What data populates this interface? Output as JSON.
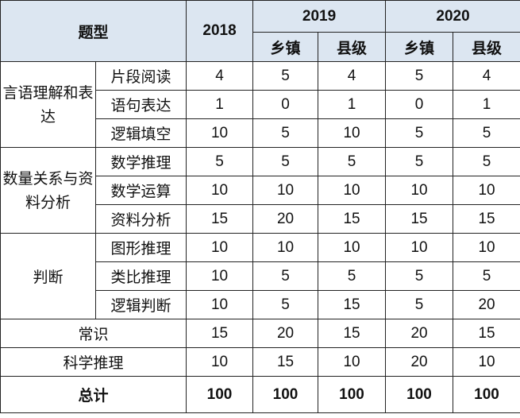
{
  "header": {
    "title": "题型",
    "year_2018": "2018",
    "year_2019": "2019",
    "year_2020": "2020",
    "sub_2019": [
      "乡镇",
      "县级"
    ],
    "sub_2020": [
      "乡镇",
      "县级"
    ]
  },
  "groups": [
    {
      "name": "言语理解和表达",
      "rows": [
        {
          "label": "片段阅读",
          "values": [
            "4",
            "5",
            "4",
            "5",
            "4"
          ]
        },
        {
          "label": "语句表达",
          "values": [
            "1",
            "0",
            "1",
            "0",
            "1"
          ]
        },
        {
          "label": "逻辑填空",
          "values": [
            "10",
            "5",
            "10",
            "5",
            "5"
          ]
        }
      ]
    },
    {
      "name": "数量关系与资料分析",
      "rows": [
        {
          "label": "数学推理",
          "values": [
            "5",
            "5",
            "5",
            "5",
            "5"
          ]
        },
        {
          "label": "数学运算",
          "values": [
            "10",
            "10",
            "10",
            "10",
            "10"
          ]
        },
        {
          "label": "资料分析",
          "values": [
            "15",
            "20",
            "15",
            "15",
            "15"
          ]
        }
      ]
    },
    {
      "name": "判断",
      "rows": [
        {
          "label": "图形推理",
          "values": [
            "10",
            "10",
            "10",
            "10",
            "10"
          ]
        },
        {
          "label": "类比推理",
          "values": [
            "10",
            "5",
            "5",
            "5",
            "5"
          ]
        },
        {
          "label": "逻辑判断",
          "values": [
            "10",
            "5",
            "15",
            "5",
            "20"
          ]
        }
      ]
    }
  ],
  "singles": [
    {
      "label": "常识",
      "values": [
        "15",
        "20",
        "15",
        "20",
        "15"
      ]
    },
    {
      "label": "科学推理",
      "values": [
        "10",
        "15",
        "10",
        "20",
        "10"
      ]
    }
  ],
  "total": {
    "label": "总计",
    "values": [
      "100",
      "100",
      "100",
      "100",
      "100"
    ]
  },
  "colors": {
    "header_bg": "#dce6f1",
    "border": "#222222"
  }
}
